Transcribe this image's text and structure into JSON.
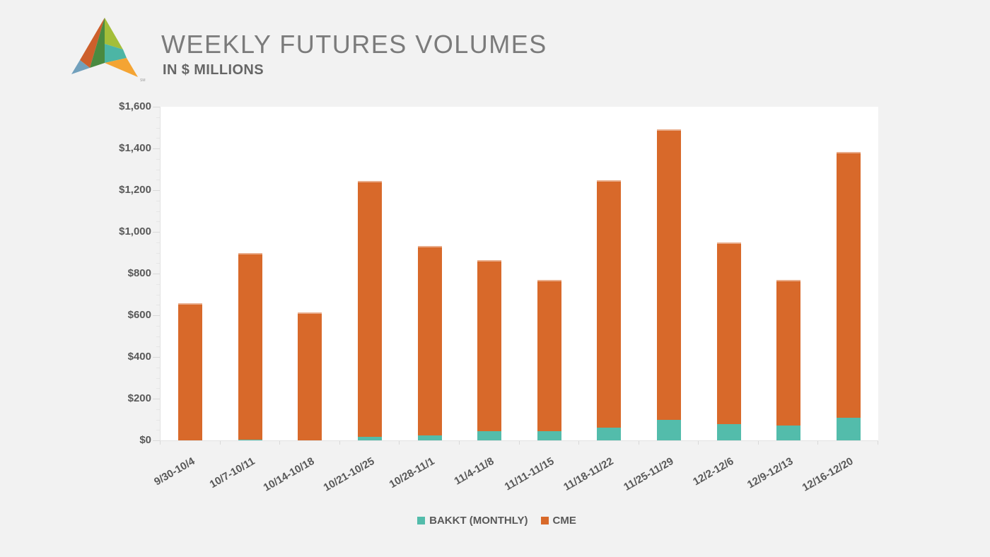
{
  "header": {
    "title": "WEEKLY FUTURES VOLUMES",
    "subtitle": "IN $ MILLIONS",
    "logo_sm_mark": "SM"
  },
  "chart_data": {
    "type": "bar",
    "stacked": true,
    "title": "WEEKLY FUTURES VOLUMES",
    "subtitle": "IN $ MILLIONS",
    "units": "USD millions",
    "categories": [
      "9/30-10/4",
      "10/7-10/11",
      "10/14-10/18",
      "10/21-10/25",
      "10/28-11/1",
      "11/4-11/8",
      "11/11-11/15",
      "11/18-11/22",
      "11/25-11/29",
      "12/2-12/6",
      "12/9-12/13",
      "12/16-12/20"
    ],
    "series": [
      {
        "name": "BAKKT (MONTHLY)",
        "color": "#53BCAB",
        "values": [
          0,
          3,
          0,
          17,
          25,
          44,
          43,
          62,
          98,
          78,
          71,
          109
        ]
      },
      {
        "name": "CME",
        "color": "#D8692A",
        "values": [
          659,
          894,
          615,
          1226,
          906,
          822,
          728,
          1185,
          1393,
          870,
          697,
          1274
        ]
      }
    ],
    "stacked_totals": [
      659,
      897,
      615,
      1243,
      931,
      866,
      771,
      1247,
      1491,
      948,
      768,
      1383
    ],
    "xlabel": "",
    "ylabel": "",
    "ylim": [
      0,
      1600
    ],
    "ytick_step": 200,
    "ytick_labels": [
      "$0",
      "$200",
      "$400",
      "$600",
      "$800",
      "$1,000",
      "$1,200",
      "$1,400",
      "$1,600"
    ],
    "minor_tick_step": 50,
    "x_label_rotation_deg": -30,
    "grid": false,
    "legend_position": "bottom"
  },
  "legend": {
    "items": [
      {
        "label": "BAKKT (MONTHLY)",
        "color": "#53BCAB"
      },
      {
        "label": "CME",
        "color": "#D8692A"
      }
    ]
  },
  "colors": {
    "background": "#F2F2F2",
    "plot_background": "#FFFFFF",
    "axis_line": "#E2E2E2",
    "tick": "#D9D9D9",
    "axis_label_text": "#595959",
    "title_text": "#7B7B7B",
    "subtitle_text": "#666666"
  },
  "logo": {
    "colors": {
      "red_orange": "#CD5F2B",
      "blue": "#71A0BC",
      "dark_green": "#4A8A40",
      "lime": "#A4BE39",
      "teal": "#4CB5A5",
      "orange": "#F4A433"
    }
  }
}
